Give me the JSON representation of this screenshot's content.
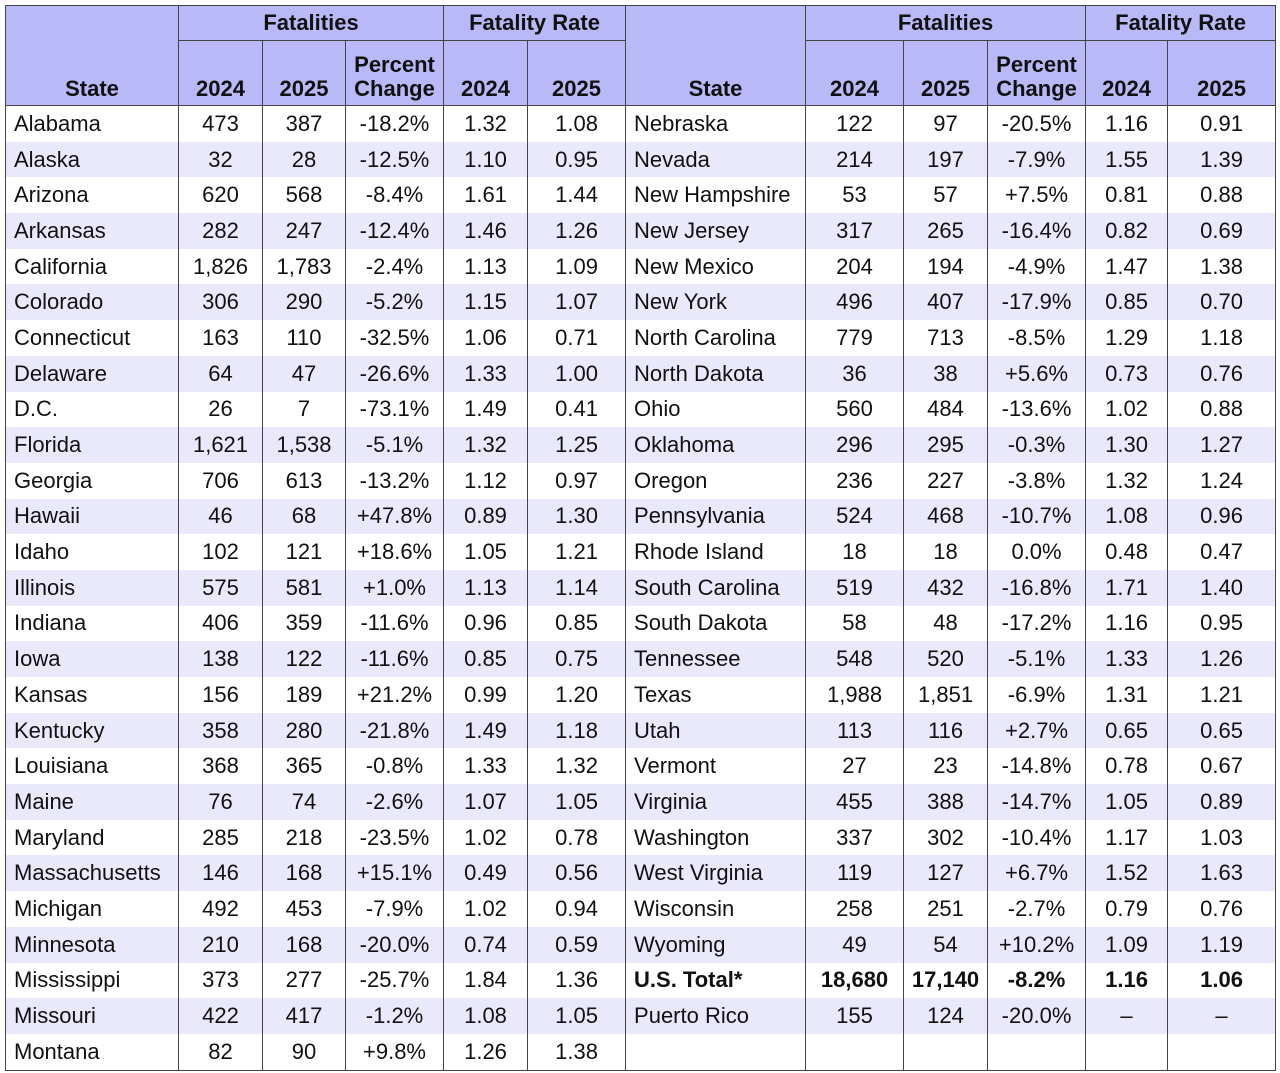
{
  "table": {
    "header": {
      "state": "State",
      "fatalities": "Fatalities",
      "fatality_rate": "Fatality Rate",
      "year_a": "2024",
      "year_b": "2025",
      "percent_change": "Percent Change"
    },
    "left_rows": [
      [
        "Alabama",
        "473",
        "387",
        "-18.2%",
        "1.32",
        "1.08"
      ],
      [
        "Alaska",
        "32",
        "28",
        "-12.5%",
        "1.10",
        "0.95"
      ],
      [
        "Arizona",
        "620",
        "568",
        "-8.4%",
        "1.61",
        "1.44"
      ],
      [
        "Arkansas",
        "282",
        "247",
        "-12.4%",
        "1.46",
        "1.26"
      ],
      [
        "California",
        "1,826",
        "1,783",
        "-2.4%",
        "1.13",
        "1.09"
      ],
      [
        "Colorado",
        "306",
        "290",
        "-5.2%",
        "1.15",
        "1.07"
      ],
      [
        "Connecticut",
        "163",
        "110",
        "-32.5%",
        "1.06",
        "0.71"
      ],
      [
        "Delaware",
        "64",
        "47",
        "-26.6%",
        "1.33",
        "1.00"
      ],
      [
        "D.C.",
        "26",
        "7",
        "-73.1%",
        "1.49",
        "0.41"
      ],
      [
        "Florida",
        "1,621",
        "1,538",
        "-5.1%",
        "1.32",
        "1.25"
      ],
      [
        "Georgia",
        "706",
        "613",
        "-13.2%",
        "1.12",
        "0.97"
      ],
      [
        "Hawaii",
        "46",
        "68",
        "+47.8%",
        "0.89",
        "1.30"
      ],
      [
        "Idaho",
        "102",
        "121",
        "+18.6%",
        "1.05",
        "1.21"
      ],
      [
        "Illinois",
        "575",
        "581",
        "+1.0%",
        "1.13",
        "1.14"
      ],
      [
        "Indiana",
        "406",
        "359",
        "-11.6%",
        "0.96",
        "0.85"
      ],
      [
        "Iowa",
        "138",
        "122",
        "-11.6%",
        "0.85",
        "0.75"
      ],
      [
        "Kansas",
        "156",
        "189",
        "+21.2%",
        "0.99",
        "1.20"
      ],
      [
        "Kentucky",
        "358",
        "280",
        "-21.8%",
        "1.49",
        "1.18"
      ],
      [
        "Louisiana",
        "368",
        "365",
        "-0.8%",
        "1.33",
        "1.32"
      ],
      [
        "Maine",
        "76",
        "74",
        "-2.6%",
        "1.07",
        "1.05"
      ],
      [
        "Maryland",
        "285",
        "218",
        "-23.5%",
        "1.02",
        "0.78"
      ],
      [
        "Massachusetts",
        "146",
        "168",
        "+15.1%",
        "0.49",
        "0.56"
      ],
      [
        "Michigan",
        "492",
        "453",
        "-7.9%",
        "1.02",
        "0.94"
      ],
      [
        "Minnesota",
        "210",
        "168",
        "-20.0%",
        "0.74",
        "0.59"
      ],
      [
        "Mississippi",
        "373",
        "277",
        "-25.7%",
        "1.84",
        "1.36"
      ],
      [
        "Missouri",
        "422",
        "417",
        "-1.2%",
        "1.08",
        "1.05"
      ],
      [
        "Montana",
        "82",
        "90",
        "+9.8%",
        "1.26",
        "1.38"
      ]
    ],
    "right_rows": [
      [
        "Nebraska",
        "122",
        "97",
        "-20.5%",
        "1.16",
        "0.91"
      ],
      [
        "Nevada",
        "214",
        "197",
        "-7.9%",
        "1.55",
        "1.39"
      ],
      [
        "New Hampshire",
        "53",
        "57",
        "+7.5%",
        "0.81",
        "0.88"
      ],
      [
        "New Jersey",
        "317",
        "265",
        "-16.4%",
        "0.82",
        "0.69"
      ],
      [
        "New Mexico",
        "204",
        "194",
        "-4.9%",
        "1.47",
        "1.38"
      ],
      [
        "New York",
        "496",
        "407",
        "-17.9%",
        "0.85",
        "0.70"
      ],
      [
        "North Carolina",
        "779",
        "713",
        "-8.5%",
        "1.29",
        "1.18"
      ],
      [
        "North Dakota",
        "36",
        "38",
        "+5.6%",
        "0.73",
        "0.76"
      ],
      [
        "Ohio",
        "560",
        "484",
        "-13.6%",
        "1.02",
        "0.88"
      ],
      [
        "Oklahoma",
        "296",
        "295",
        "-0.3%",
        "1.30",
        "1.27"
      ],
      [
        "Oregon",
        "236",
        "227",
        "-3.8%",
        "1.32",
        "1.24"
      ],
      [
        "Pennsylvania",
        "524",
        "468",
        "-10.7%",
        "1.08",
        "0.96"
      ],
      [
        "Rhode Island",
        "18",
        "18",
        "0.0%",
        "0.48",
        "0.47"
      ],
      [
        "South Carolina",
        "519",
        "432",
        "-16.8%",
        "1.71",
        "1.40"
      ],
      [
        "South Dakota",
        "58",
        "48",
        "-17.2%",
        "1.16",
        "0.95"
      ],
      [
        "Tennessee",
        "548",
        "520",
        "-5.1%",
        "1.33",
        "1.26"
      ],
      [
        "Texas",
        "1,988",
        "1,851",
        "-6.9%",
        "1.31",
        "1.21"
      ],
      [
        "Utah",
        "113",
        "116",
        "+2.7%",
        "0.65",
        "0.65"
      ],
      [
        "Vermont",
        "27",
        "23",
        "-14.8%",
        "0.78",
        "0.67"
      ],
      [
        "Virginia",
        "455",
        "388",
        "-14.7%",
        "1.05",
        "0.89"
      ],
      [
        "Washington",
        "337",
        "302",
        "-10.4%",
        "1.17",
        "1.03"
      ],
      [
        "West Virginia",
        "119",
        "127",
        "+6.7%",
        "1.52",
        "1.63"
      ],
      [
        "Wisconsin",
        "258",
        "251",
        "-2.7%",
        "0.79",
        "0.76"
      ],
      [
        "Wyoming",
        "49",
        "54",
        "+10.2%",
        "1.09",
        "1.19"
      ],
      [
        "U.S. Total*",
        "18,680",
        "17,140",
        "-8.2%",
        "1.16",
        "1.06"
      ],
      [
        "Puerto Rico",
        "155",
        "124",
        "-20.0%",
        "–",
        "–"
      ]
    ]
  }
}
